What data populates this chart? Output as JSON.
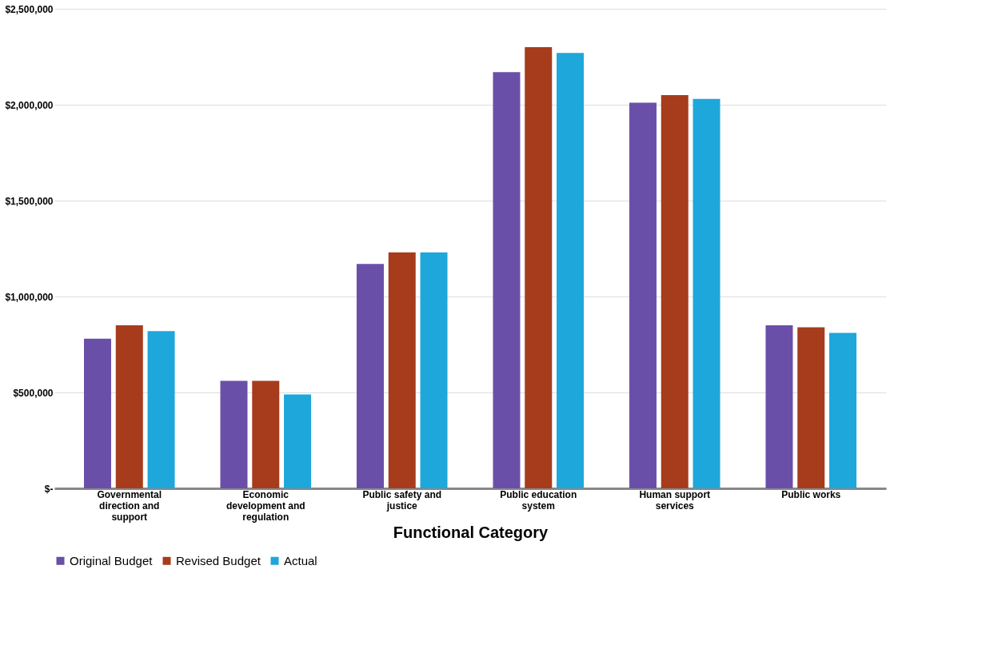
{
  "chart_data": {
    "type": "bar",
    "xlabel": "Functional Category",
    "categories": [
      "Governmental direction and support",
      "Economic development and regulation",
      "Public safety and justice",
      "Public education system",
      "Human support services",
      "Public works"
    ],
    "series": [
      {
        "name": "Original Budget",
        "color": "#6a4fa8",
        "values": [
          780000,
          560000,
          1170000,
          2170000,
          2010000,
          850000
        ]
      },
      {
        "name": "Revised Budget",
        "color": "#a63c1c",
        "values": [
          850000,
          560000,
          1230000,
          2300000,
          2050000,
          840000
        ]
      },
      {
        "name": "Actual",
        "color": "#1ea7db",
        "values": [
          820000,
          490000,
          1230000,
          2270000,
          2030000,
          810000
        ]
      }
    ],
    "ylim": [
      0,
      2500000
    ],
    "yticks": [
      {
        "value": 0,
        "label": "$-"
      },
      {
        "value": 500000,
        "label": "$500,000"
      },
      {
        "value": 1000000,
        "label": "$1,000,000"
      },
      {
        "value": 1500000,
        "label": "$1,500,000"
      },
      {
        "value": 2000000,
        "label": "$2,000,000"
      },
      {
        "value": 2500000,
        "label": "$2,500,000"
      }
    ],
    "grid": "y",
    "legend": "bottom"
  }
}
